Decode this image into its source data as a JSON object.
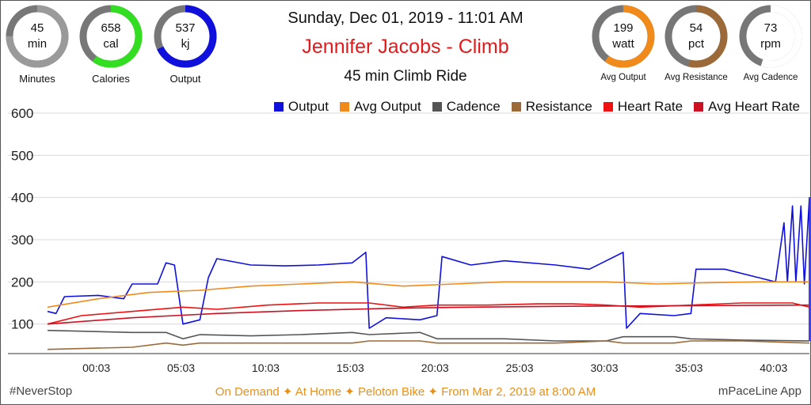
{
  "gauges_left": [
    {
      "value": "45",
      "unit": "min",
      "label": "Minutes",
      "fraction": 0.75,
      "color": "#9a9a9a"
    },
    {
      "value": "658",
      "unit": "cal",
      "label": "Calories",
      "fraction": 0.6,
      "color": "#33dd22"
    },
    {
      "value": "537",
      "unit": "kj",
      "label": "Output",
      "fraction": 0.68,
      "color": "#1010dd"
    }
  ],
  "gauges_right": [
    {
      "value": "199",
      "unit": "watt",
      "label": "Avg Output",
      "fraction": 0.6,
      "color": "#f08a1a"
    },
    {
      "value": "54",
      "unit": "pct",
      "label": "Avg Resistance",
      "fraction": 0.54,
      "color": "#9c6a38"
    },
    {
      "value": "73",
      "unit": "rpm",
      "label": "Avg Cadence",
      "fraction": 0.55,
      "color": "#ffffff"
    }
  ],
  "header": {
    "date": "Sunday, Dec 01, 2019 - 11:01 AM",
    "rider": "Jennifer Jacobs - Climb",
    "ride": "45 min Climb Ride"
  },
  "legend": [
    {
      "name": "Output",
      "color": "#1010dd"
    },
    {
      "name": "Avg Output",
      "color": "#f08a1a"
    },
    {
      "name": "Cadence",
      "color": "#555555"
    },
    {
      "name": "Resistance",
      "color": "#9c6a38"
    },
    {
      "name": "Heart Rate",
      "color": "#ee1111"
    },
    {
      "name": "Avg Heart Rate",
      "color": "#cc1122"
    }
  ],
  "footer": {
    "left": "#NeverStop",
    "center": "On Demand ✦ At Home  ✦ Peloton Bike ✦ From Mar 2, 2019 at 8:00 AM",
    "right": "mPaceLine App"
  },
  "chart_data": {
    "type": "line",
    "xlim": [
      0,
      45
    ],
    "ylim": [
      30,
      600
    ],
    "yticks": [
      100,
      200,
      300,
      400,
      500,
      600
    ],
    "xticks": [
      {
        "label": "00:03",
        "t": 3
      },
      {
        "label": "05:03",
        "t": 8
      },
      {
        "label": "10:03",
        "t": 13
      },
      {
        "label": "15:03",
        "t": 18
      },
      {
        "label": "20:03",
        "t": 23
      },
      {
        "label": "25:03",
        "t": 28
      },
      {
        "label": "30:03",
        "t": 33
      },
      {
        "label": "35:03",
        "t": 38
      },
      {
        "label": "40:03",
        "t": 43
      }
    ],
    "grid": true,
    "legend_position": "top-right",
    "series": [
      {
        "name": "Output",
        "color": "#1010dd",
        "points": [
          [
            0,
            130
          ],
          [
            0.5,
            125
          ],
          [
            1,
            165
          ],
          [
            3,
            168
          ],
          [
            4.5,
            160
          ],
          [
            5,
            195
          ],
          [
            6.5,
            195
          ],
          [
            7,
            245
          ],
          [
            7.5,
            240
          ],
          [
            8,
            100
          ],
          [
            9,
            110
          ],
          [
            9.5,
            210
          ],
          [
            10,
            255
          ],
          [
            12,
            240
          ],
          [
            14,
            238
          ],
          [
            16,
            240
          ],
          [
            18,
            245
          ],
          [
            18.8,
            270
          ],
          [
            19,
            90
          ],
          [
            20,
            115
          ],
          [
            22,
            110
          ],
          [
            23,
            120
          ],
          [
            23.3,
            260
          ],
          [
            25,
            240
          ],
          [
            27,
            250
          ],
          [
            30,
            240
          ],
          [
            32,
            230
          ],
          [
            34,
            270
          ],
          [
            34.2,
            90
          ],
          [
            35,
            125
          ],
          [
            37,
            120
          ],
          [
            38,
            125
          ],
          [
            38.3,
            230
          ],
          [
            40,
            230
          ],
          [
            42,
            210
          ],
          [
            43,
            200
          ],
          [
            43.5,
            340
          ],
          [
            43.7,
            200
          ],
          [
            44,
            380
          ],
          [
            44.2,
            200
          ],
          [
            44.5,
            380
          ],
          [
            44.7,
            195
          ],
          [
            45,
            400
          ],
          [
            45,
            60
          ]
        ]
      },
      {
        "name": "Avg Output",
        "color": "#f08a1a",
        "points": [
          [
            0,
            140
          ],
          [
            3,
            160
          ],
          [
            6,
            175
          ],
          [
            9,
            180
          ],
          [
            12,
            190
          ],
          [
            15,
            195
          ],
          [
            18,
            200
          ],
          [
            21,
            190
          ],
          [
            24,
            195
          ],
          [
            27,
            200
          ],
          [
            30,
            200
          ],
          [
            33,
            200
          ],
          [
            36,
            195
          ],
          [
            39,
            198
          ],
          [
            42,
            200
          ],
          [
            45,
            200
          ]
        ]
      },
      {
        "name": "Cadence",
        "color": "#555555",
        "points": [
          [
            0,
            85
          ],
          [
            5,
            80
          ],
          [
            7,
            80
          ],
          [
            8,
            65
          ],
          [
            9,
            75
          ],
          [
            12,
            72
          ],
          [
            15,
            75
          ],
          [
            18,
            80
          ],
          [
            19,
            75
          ],
          [
            22,
            80
          ],
          [
            23,
            65
          ],
          [
            27,
            65
          ],
          [
            30,
            60
          ],
          [
            33,
            60
          ],
          [
            34,
            70
          ],
          [
            37,
            70
          ],
          [
            38,
            65
          ],
          [
            41,
            62
          ],
          [
            45,
            60
          ]
        ]
      },
      {
        "name": "Resistance",
        "color": "#9c6a38",
        "points": [
          [
            0,
            40
          ],
          [
            5,
            45
          ],
          [
            7,
            55
          ],
          [
            8,
            50
          ],
          [
            9,
            55
          ],
          [
            12,
            55
          ],
          [
            15,
            55
          ],
          [
            18,
            55
          ],
          [
            19,
            60
          ],
          [
            22,
            60
          ],
          [
            23,
            55
          ],
          [
            27,
            55
          ],
          [
            30,
            55
          ],
          [
            33,
            60
          ],
          [
            34,
            55
          ],
          [
            37,
            55
          ],
          [
            38,
            60
          ],
          [
            41,
            60
          ],
          [
            45,
            55
          ]
        ]
      },
      {
        "name": "Heart Rate",
        "color": "#ee1111",
        "points": [
          [
            0,
            100
          ],
          [
            2,
            120
          ],
          [
            5,
            130
          ],
          [
            8,
            140
          ],
          [
            10,
            135
          ],
          [
            13,
            145
          ],
          [
            16,
            150
          ],
          [
            19,
            150
          ],
          [
            21,
            140
          ],
          [
            23,
            145
          ],
          [
            26,
            145
          ],
          [
            29,
            148
          ],
          [
            31,
            148
          ],
          [
            33,
            145
          ],
          [
            35,
            140
          ],
          [
            38,
            145
          ],
          [
            41,
            150
          ],
          [
            44,
            150
          ],
          [
            45,
            140
          ]
        ]
      },
      {
        "name": "Avg Heart Rate",
        "color": "#cc1122",
        "points": [
          [
            0,
            100
          ],
          [
            5,
            115
          ],
          [
            10,
            125
          ],
          [
            15,
            132
          ],
          [
            20,
            137
          ],
          [
            25,
            140
          ],
          [
            30,
            142
          ],
          [
            35,
            143
          ],
          [
            40,
            144
          ],
          [
            45,
            145
          ]
        ]
      }
    ]
  }
}
